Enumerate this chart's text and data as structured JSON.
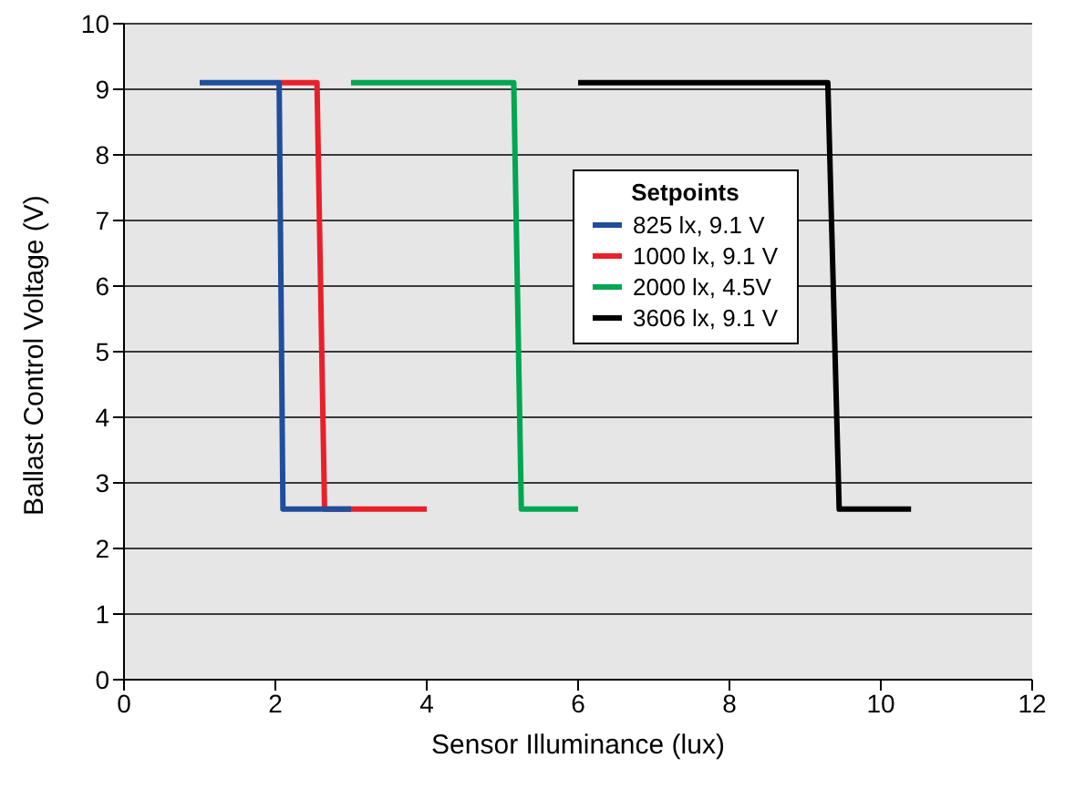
{
  "chart_data": {
    "type": "line",
    "xlabel": "Sensor Illuminance (lux)",
    "ylabel": "Ballast Control Voltage (V)",
    "legend_title": "Setpoints",
    "series": [
      {
        "name": "825 lx, 9.1 V",
        "color": "#1f4e9c",
        "x": [
          1.0,
          2.05,
          2.1,
          3.0
        ],
        "values": [
          9.1,
          9.1,
          2.6,
          2.6
        ]
      },
      {
        "name": "1000 lx, 9.1 V",
        "color": "#e8202a",
        "x": [
          2.05,
          2.55,
          2.65,
          4.0
        ],
        "values": [
          9.1,
          9.1,
          2.6,
          2.6
        ]
      },
      {
        "name": "2000 lx, 4.5V",
        "color": "#00a651",
        "x": [
          3.0,
          5.15,
          5.25,
          6.0
        ],
        "values": [
          9.1,
          9.1,
          2.6,
          2.6
        ]
      },
      {
        "name": "3606 lx, 9.1 V",
        "color": "#000000",
        "x": [
          6.0,
          9.3,
          9.45,
          10.4
        ],
        "values": [
          9.1,
          9.1,
          2.6,
          2.6
        ]
      }
    ],
    "xlim": [
      0,
      12
    ],
    "xticks": [
      0,
      2,
      4,
      6,
      8,
      10,
      12
    ],
    "ylim": [
      0,
      10
    ],
    "yticks": [
      0,
      1,
      2,
      3,
      4,
      5,
      6,
      7,
      8,
      9,
      10
    ],
    "grid": "y",
    "legend": "right",
    "marker": "none",
    "line_style": "solid"
  }
}
